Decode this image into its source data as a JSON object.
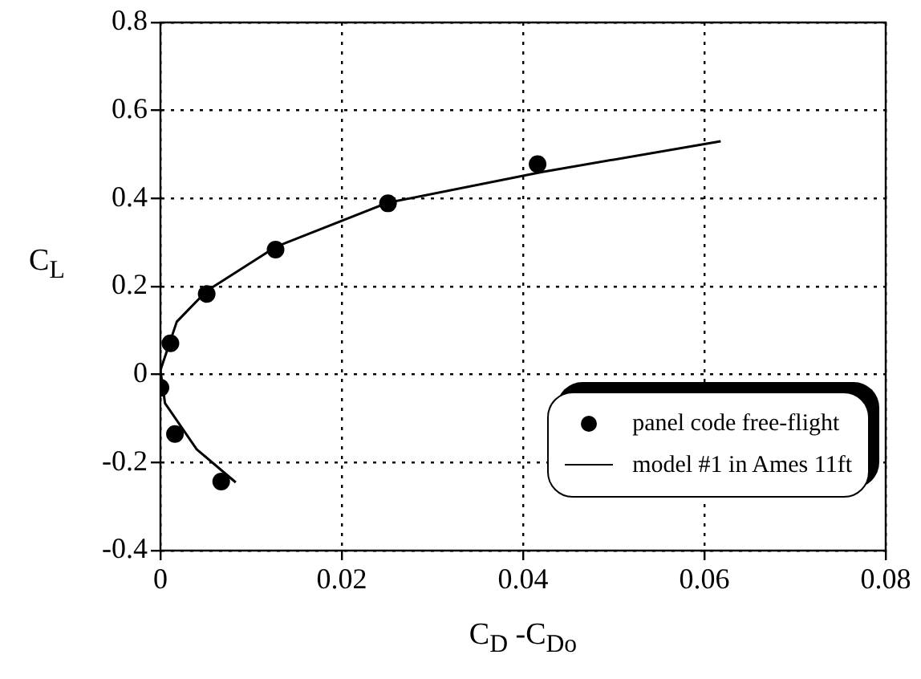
{
  "chart_data": {
    "type": "scatter",
    "xlabel": "C$_{D}$ -C$_{Do}$",
    "ylabel": "C$_{L}$",
    "xlim": [
      0,
      0.08
    ],
    "xticks": [
      0,
      0.02,
      0.04,
      0.06,
      0.08
    ],
    "ylim": [
      -0.4,
      0.8
    ],
    "yticks": [
      -0.4,
      -0.2,
      0,
      0.2,
      0.4,
      0.6,
      0.8
    ],
    "grid": true,
    "legend": "bottom right",
    "series": [
      {
        "name": "panel code free-flight",
        "type": "scatter",
        "marker": "circle",
        "color": "#000000",
        "x": [
          0.0416,
          0.0251,
          0.0127,
          0.0051,
          0.0011,
          0.0,
          0.0016,
          0.0067
        ],
        "values": [
          0.478,
          0.389,
          0.284,
          0.183,
          0.071,
          -0.03,
          -0.135,
          -0.243
        ]
      },
      {
        "name": "model #1 in Ames 11ft",
        "type": "line",
        "marker": "none",
        "line_style": "solid",
        "color": "#000000",
        "x": [
          0.0083,
          0.004,
          0.0005,
          0.0,
          0.0018,
          0.0051,
          0.0127,
          0.025,
          0.042,
          0.0618
        ],
        "values": [
          -0.245,
          -0.17,
          -0.065,
          0.01,
          0.12,
          0.19,
          0.29,
          0.39,
          0.46,
          0.53
        ]
      }
    ]
  }
}
